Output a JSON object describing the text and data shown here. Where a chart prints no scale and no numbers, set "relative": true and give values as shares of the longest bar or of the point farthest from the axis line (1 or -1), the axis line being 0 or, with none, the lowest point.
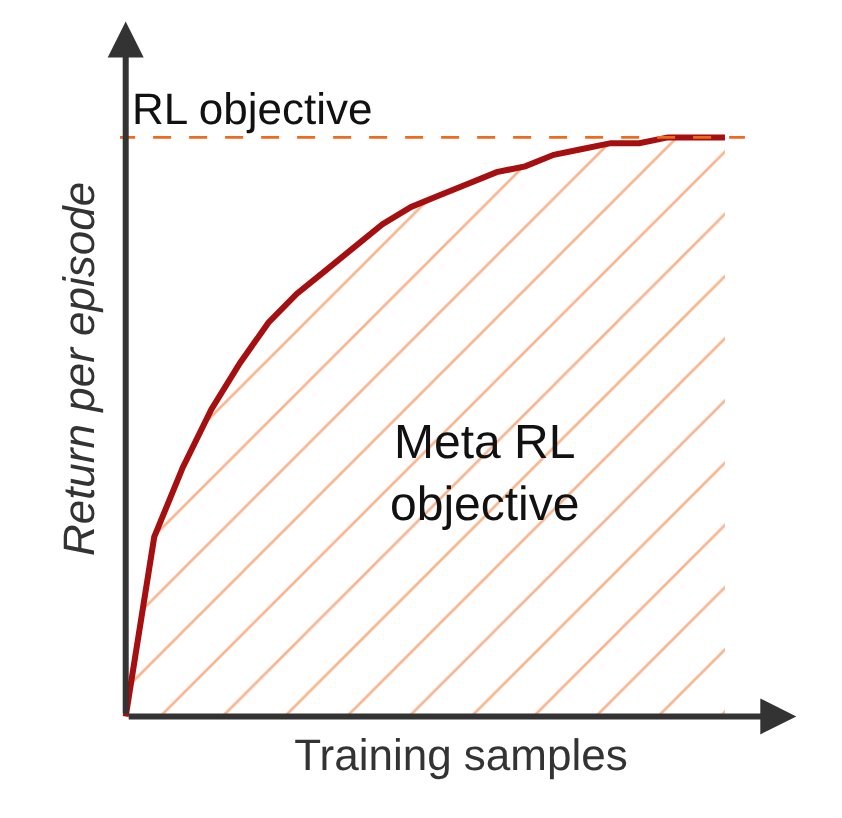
{
  "chart_data": {
    "type": "area",
    "relative": true,
    "xlabel": "Training samples",
    "ylabel": "Return per episode",
    "categories": [
      null,
      null,
      null,
      null,
      null,
      null,
      null,
      null,
      null,
      null,
      null,
      null,
      null,
      null,
      null,
      null,
      null,
      null,
      null,
      null,
      null,
      null
    ],
    "series": [
      {
        "color": "#a50f0f",
        "values": [
          0,
          0.31,
          0.43,
          0.53,
          0.61,
          0.68,
          0.73,
          0.77,
          0.81,
          0.85,
          0.88,
          0.9,
          0.92,
          0.94,
          0.95,
          0.97,
          0.98,
          0.99,
          0.99,
          1.0,
          1.0,
          1.0
        ]
      }
    ],
    "ref_lines": [
      {
        "axis": "y",
        "value": 1,
        "label": "RL objective",
        "color": "#f06a1e",
        "line_style": "dashed"
      }
    ],
    "annotations": [
      "Meta RL objective"
    ],
    "legend": false
  }
}
